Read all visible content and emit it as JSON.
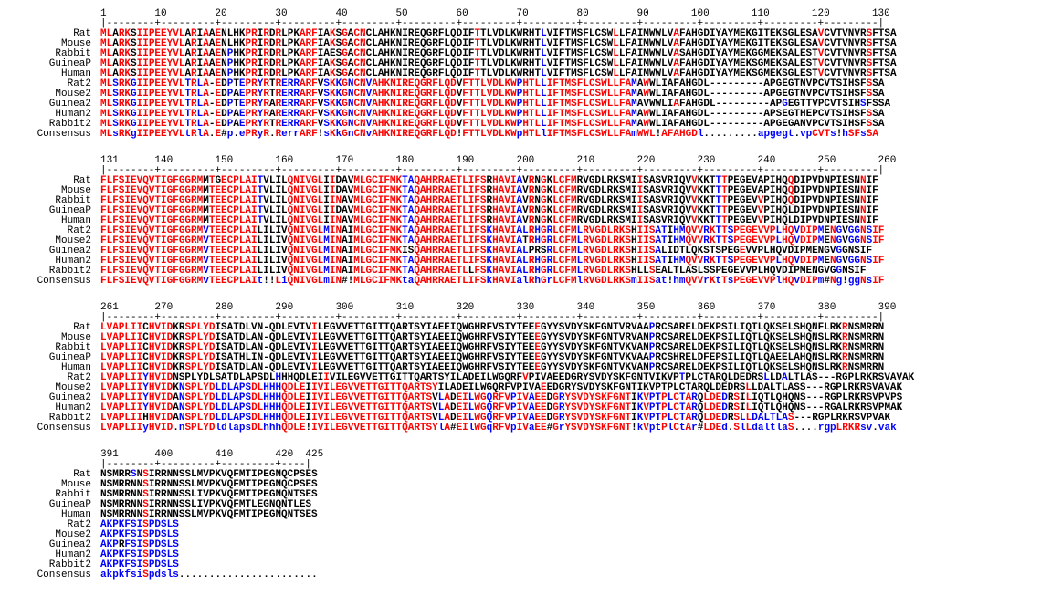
{
  "alignment": {
    "type": "sequence-alignment",
    "font_family": "Courier New",
    "font_size_pt": 8,
    "background_color": "#ffffff",
    "colors": {
      "high": "#ff0000",
      "low": "#0000ff",
      "neutral": "#000000"
    },
    "species_labels": [
      "Rat",
      "Mouse",
      "Rabbit",
      "GuineaP",
      "Human",
      "Rat2",
      "Mouse2",
      "Guinea2",
      "Human2",
      "Rabbit2",
      "Consensus"
    ],
    "blocks": [
      {
        "start": 1,
        "end": 130,
        "ruler_numbers": "1        10        20        30        40        50        60        70        80        90       100       110       120       130",
        "ruler_ticks": "|--------+---------+---------+---------+---------+---------+---------+---------+---------+---------+---------+---------+---------|",
        "rows": [
          {
            "label": "Rat",
            "seq": "MLARKSIIPEEYVLARIAAENLHKPRIRDRLPKARFIAKSGACNCLAHKNIREQGRFLQDIFTTLVDLKWRHTLVIFTMSFLCSWLLFAIMWWLVAFAHGDIYAYMEKGITEKSGLESAVCVTVNVRSFTSA"
          },
          {
            "label": "Mouse",
            "seq": "MLARKSIIPEEYVLARIAAENLHKPRIRDRLPKARFIAKSGACNCLAHKNIREQGRFLQDIFTTLVDLKWRHTLVIFTMSFLCSWLLFAIMWWLVAFAHGDIYAYMEKGITEKSGLESAVCVTVNVRSFTSA"
          },
          {
            "label": "Rabbit",
            "seq": "MLARKSIIPEEYVLARIAAENPHKPRIRDRLPKARFIAESGACNCLAHKNIREQGRFLQDIFTTLVDLKWRHTLVIFTMSFLCSWLLFAIMWWLVASAHGDIYAYMEKGGMEKSALESTVCVTVNVRSFTSA"
          },
          {
            "label": "GuineaP",
            "seq": "MLARKSIIPEEYVLARIAAENPHKPRIRDRLPKARFIAKSGACNCLAHKNIREQGRFLQDIFTTLVDLKWRHTLVIFTMSFLCSWLLFAIMWWLVAFAHGDIYAYMEKSGMEKSALESTVCVTVNVRSFTSA"
          },
          {
            "label": "Human",
            "seq": "MLARKSIIPEEYVLARIAAENPHKPRIRDRLPKARFIAKSGACNCLAHKNIREQGRFLQDIFTTLVDLKWRHTLVIFTMSFLCSWLLFAIMWWLVAFAHGDIYAYMEKSGMEKSGLESTVCVTVNVRSFTSA"
          },
          {
            "label": "Rat2",
            "seq": "MLSRKGIIPEEYVLTRLA-EDPTEPRYRTRERRARFVSKKGNCNVAHKNIREQGRFLQDVFTTLVDLKWPHTLLIFTMSFLCSWLLFAMAWWLIAFAHGDL---------APGEGTNVPCVTSIHSFSSA"
          },
          {
            "label": "Mouse2",
            "seq": "MLSRKGIIPEEYVLTRLA-EDPAEPRYRTRERRARFVSKKGNCNVAHKNIREQGRFLQDVFTTLVDLKWPHTLLIFTMSFLCSWLLFAMAWWLIAFAHGDL---------APGEGTNVPCVTSIHSFSSA"
          },
          {
            "label": "Guinea2",
            "seq": "MLSRKGIIPEEYVLTRLA-EDPTEPRYRARERRARFVSKKGNCNVAHKNIREQGRFLQDVFTTLVDLKWPHTLLIFTMSFLCSWLLFAMAVWWLIAFAHGDL---------APGEGTTVPCVTSIHSFSSA"
          },
          {
            "label": "Human2",
            "seq": "MLSRKGIIPEEYVLTRLA-EDPAEPRYRARERRARFVSKKGNCNVAHKNIREQGRFLQDVFTTLVDLKWPHTLLIFTMSFLCSWLLFAMAWWLIAFAHGDL---------APSEGTHEPCVTSIHSFSSA"
          },
          {
            "label": "Rabbit2",
            "seq": "MLSRKGIIPEEYVLTRLA-EDPAEPRYRTRERRARFVSKKGNCNVAHKNIREQGRFLQDVFTTLVDLKWPHTLLIFTMSFLCSWLLFAMAWWLIAFAHGDL---------APGEGANVPCVTSIHSFSSA"
          },
          {
            "label": "Consensus",
            "seq": "MLsRKgIIPEEYVLtRlA.E#p.ePRyR.RerrARF!sKkGnCNvAHKNIREQGRFLQD!FTTLVDLKWpHTLlIFTMSFLCSWLLFAmWWL!AFAHGDl.........apgegt.vpCVTs!hSFsSA"
          }
        ]
      },
      {
        "start": 131,
        "end": 260,
        "ruler_numbers": "131      140       150       160       170       180       190       200       210       220       230       240       250       260",
        "ruler_ticks": "|--------+---------+---------+---------+---------+---------+---------+---------+---------+---------+---------+---------+---------|",
        "rows": [
          {
            "label": "Rat",
            "seq": "FLFSIEVQVTIGFGGRMMTGECPLAITVLILQNIVGLIIDAVMLGCIFMKTAQAHRRAETLIFSRHAVIAVRNGKLCFMRVGDLRKSMIISASVRIQVVKKTTTPEGEVAPIHQQDIPVDNPIESNNIF"
          },
          {
            "label": "Mouse",
            "seq": "FLFSIEVQVTIGFGGRMMTEECPLAITVLILQNIVGLIIDAVMLGCIFMKTAQAHRRAETLIFSRHAVIAVRNGKLCFMRVGDLRKSMIISASVRIQVVKKTTTPEGEVAPIHQQDIPVDNPIESNNIF"
          },
          {
            "label": "Rabbit",
            "seq": "FLFSIEVQVTIGFGGRMMTEECPLAITVLILQNIVGLIINAVMLGCIFMKTAQAHRRAETLIFSRHAVIAVRNGKLCFMRVGDLRKSMIISASVRIQVVKKTTTPEGEVVPIHQQDIPVDNPIESNNIF"
          },
          {
            "label": "GuineaP",
            "seq": "FLFSIEVQVTIGFGGRMMTEECPLAITVLILQNIVGLIIDAVMLGCIFMKTAQAHRRAETLIFSRHAVIAVRNGKLCFMRVGDLRKSMIISASVRIQVVKKTTTPEGEVVPIHQLDIPVDNPIESNNIF"
          },
          {
            "label": "Human",
            "seq": "FLFSIEVQVTIGFGGRMMTEECPLAITVLILQNIVGLIINAVMLGCIFMKTAQAHRRAETLIFSRHAVIAVRNGKLCFMRVGDLRKSMIISASVRIQVVKKTTTPEGEVVPIHQLDIPVDNPIESNNIF"
          },
          {
            "label": "Rat2",
            "seq": "FLFSIEVQVTIGFGGRMVTEECPLAILILIVQNIVGLMINAIMLGCIFMKTAQAHRRAETLIFSKHAVIALRHGRLCFMLRVGDLRKSHIISATIHMQVVRKTTSPEGEVVPLHQVDIPMENGVGGNSIF"
          },
          {
            "label": "Mouse2",
            "seq": "FLFSIEVQVTIGFGGRMVTEECPLAILILIVQNIVGLMINAIMLGCIFMKTAQAHRRAETLIFSKHAVIATRHGRLCFMLRVGDLRKSHIISATIHMQVVRKTTSPEGEVVPLHQVDIPMENGVGGNSIF"
          },
          {
            "label": "Guinea2",
            "seq": "FLFSIEVQVTIGFGGRMVTEECPLAILILIVQNIVGLMINAIMLGCIFMKISQAHRRAETLIFSKHAVIALPRSRLCFMLRVGDLRKSHIISALIDTLQKSTSPEGEVVPLHQVDIPMENGVGGNSIF"
          },
          {
            "label": "Human2",
            "seq": "FLFSIEVQVTIGFGGRMVTEECPLAILILIVQNIVGLMINAIMLGCIFMKTAQAHRRAETLIFSKHAVIALRHGRLCFMLRVGDLRKSHIISATIHMQVVRKTTSPEGEVVPLHQVDIPMENGVGGNSIF"
          },
          {
            "label": "Rabbit2",
            "seq": "FLFSIEVQVTIGFGGRMVTEECPLAILILIVQNIVGLMINAIMLGCIFMKTAQAHRRAETLLFSKHAVIALRHGRLCFMLRVGDLRKSHLLSEALTLASLSSPEGEVVPLHQVDIPMENGVGGNSIF"
          },
          {
            "label": "Consensus",
            "seq": "FLFSIEVQVTIGFGGRMvTEECPLAIt!!LiQNIVGLmIN#!MLGCIFMKtaQAHRRAETLIFSkHAVIalRhGrLCFMlRVGDLRKSmIISat!hmQVVrKtTsPEGEVVPlHQvDIPm#Ng!ggNsIF"
          }
        ]
      },
      {
        "start": 261,
        "end": 390,
        "ruler_numbers": "261      270       280       290       300       310       320       330       340       350       360       370       380       390",
        "ruler_ticks": "|--------+---------+---------+---------+---------+---------+---------+---------+---------+---------+---------+---------+---------|",
        "rows": [
          {
            "label": "Rat",
            "seq": "LVAPLIICHVIDKRSPLYDISATDLVN-QDLEVIVILEGVVETTGITTQARTSYIAEEIQWGHRFVSIYTEEEGYYSVDYSKFGNTVRVAAPRCSARELDEKPSILIQTLQKSELSHQNFLRKRNSMRRN"
          },
          {
            "label": "Mouse",
            "seq": "LVAPLIICHVIDKRSPLYDISATDLAN-QDLEVIVILEGVVETTGITTQARTSYIAEEIQWGHRFVSIYTEEEGYYSVDYSKFGNTVRVANPRCSARELDEKPSILIQTLQKSELSHQNSLRKRNSMRRN"
          },
          {
            "label": "Rabbit",
            "seq": "LVAPLIICHVIDKRSPLYDISATDLAN-QDLEVIVILEGVVETTGITTQARTSYIAEEIQWGHRFVSIYTEEEGYYSVDYSKFGNTVKVANPRCSARELDEKPSILIQTLQKSELSHQNSLRKRNSMRRN"
          },
          {
            "label": "GuineaP",
            "seq": "LVAPLIICHVIDKRSPLYDISATHLIN-QDLEVIVILEGVVETTGITTQARTSYIAEEIQWGHRFVSIYTEEEGYYSVDYSKFGNTVKVAAPRCSHRELDFEPSILIQTLQAEELAHQNSLRKRNSMRRN"
          },
          {
            "label": "Human",
            "seq": "LVAPLIICHVIDKRSPLYDISATDLAN-QDLEVIVILEGVVETTGITTQARTSYIAEEIQWGHRFVSIYTEEEGYYSVDYSKFGNTVKVANPRCSARELDEKPSILIQTLQKSELSHQNSLRKRNSMRRN"
          },
          {
            "label": "Rat2",
            "seq": "LVAPLIIYHVIDNSPLYDLSATDLAPSDLHHHQDLEIIVILEGVVETTGITTQARTSYILADEILWGQRFVPIVAEEDGRYSVDYSKFGNTVIKVPTPLCTARQLDEDRSLLDALTLAS---RGPLRKRSVAVAK"
          },
          {
            "label": "Mouse2",
            "seq": "LVAPLIIYHVIDKNSPLYDLDLAPSDLHHHQDLEIIVILEGVVETTGITTQARTSYILADEILWGQRFVPIVAEEDGRYSVDYSKFGNTIKVPTPLCTARQLDEDRSLLDALTLASS---RGPLRKRSVAVAK"
          },
          {
            "label": "Guinea2",
            "seq": "LVAPLIIYHVIDANSPLYDLDLAPSDLHHHQDLEIIVILEGVVETTGITTQARTSVLADEILWGQRFVPIVAEEDGRYSVDYSKFGNTIKVPTPLCTARQLDEDRSILIQTLQHQNS---RGPLRKRSVPVPS"
          },
          {
            "label": "Human2",
            "seq": "LVAPLIIYHVIDANSPLYDLDLAPSDLHHHQDLEIIVILEGVVETTGITTQARTSVLADEILWGQRFVPIVAEEDGRYSVDYSKFGNTIKVPTPLCTARQLDEDRSILIQTLQHQNS---RGALRKRSVPMAK"
          },
          {
            "label": "Rabbit2",
            "seq": "LVAPLIIHHVIDANSPLYDLDLAPSDLHHHQDLEIIVILEGVVETTGITTQARTSVLADEILWGQRFVPIVAEEDGRYSVDYSKFGNTIKVPTPLCTARQLDEDRSLLDALTLAS---RGPLRKRSVPVAK"
          },
          {
            "label": "Consensus",
            "seq": "LVAPLIIyHVID.nSPLYDldlapsDLhhhQDLE!IVILEGVVETTGITTQARTSYlA#EIlWGqRFVpIVaEE#GrYSVDYSKFGNT!kVptPlCtAr#LDEd.SlLdaltlaS....rgpLRKRsv.vak"
          }
        ]
      },
      {
        "start": 391,
        "end": 425,
        "ruler_numbers": "391      400       410       420  425",
        "ruler_ticks": "|--------+---------+---------+----|",
        "rows": [
          {
            "label": "Rat",
            "seq": "NSMRRSNSIRRNNSSLMVPKVQFMTIPEGNQCPSES"
          },
          {
            "label": "Mouse",
            "seq": "NSMRRNNSIRRNNSSLMVPKVQFMTIPEGNQCPSES"
          },
          {
            "label": "Rabbit",
            "seq": "NSMRRNNSIRRNNSSLIVPKVQFMTIPEGNQNTSES"
          },
          {
            "label": "GuineaP",
            "seq": "NSMRRNNSIRRNNSSLIVPKVQFMTLEGNQNTLES"
          },
          {
            "label": "Human",
            "seq": "NSMRRNNSIRRNNSSLMVPKVQFMTIPEGNQNTSES"
          },
          {
            "label": "Rat2",
            "seq": "AKPKFSISPDSLS"
          },
          {
            "label": "Mouse2",
            "seq": "AKPKFSISPDSLS"
          },
          {
            "label": "Guinea2",
            "seq": "AKPRFSISPDSLS"
          },
          {
            "label": "Human2",
            "seq": "AKPKFSISPDSLS"
          },
          {
            "label": "Rabbit2",
            "seq": "AKPKFSISPDSLS"
          },
          {
            "label": "Consensus",
            "seq": "akpkfsiSpdsls......................."
          }
        ]
      }
    ]
  }
}
